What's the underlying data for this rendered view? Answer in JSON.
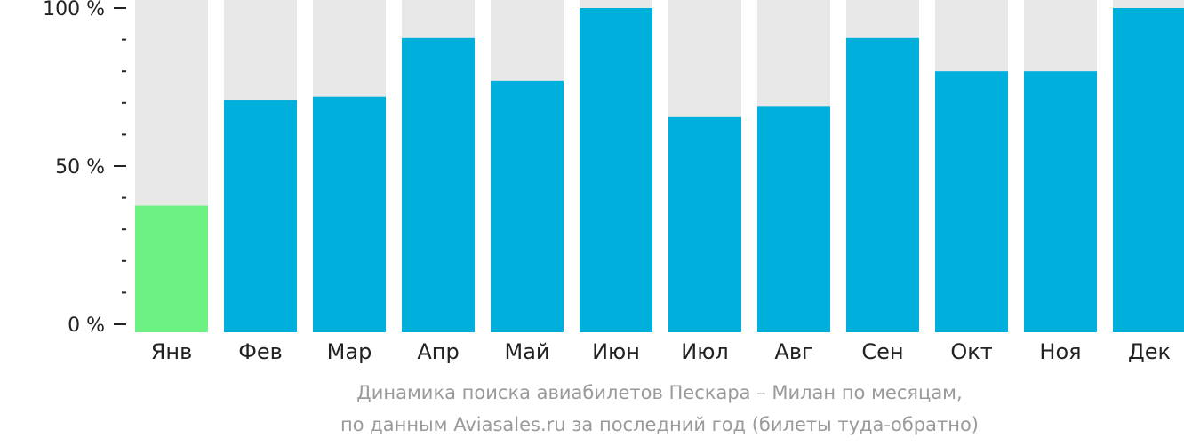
{
  "chart_data": {
    "type": "bar",
    "categories": [
      "Янв",
      "Фев",
      "Мар",
      "Апр",
      "Май",
      "Июн",
      "Июл",
      "Авг",
      "Сен",
      "Окт",
      "Ноя",
      "Дек"
    ],
    "values": [
      37.5,
      71,
      72,
      90.5,
      77,
      100,
      65.5,
      69,
      90.5,
      80,
      80,
      100
    ],
    "ylim": [
      0,
      100
    ],
    "y_ticks": [
      "0 %",
      "50 %",
      "100 %"
    ],
    "colors": {
      "bar": "#01afdc",
      "bar_min": "#6cf283",
      "bar_background": "#e8e8e8",
      "axis": "#222222"
    },
    "caption_line1": "Динамика поиска авиабилетов Пескара – Милан по месяцам,",
    "caption_line2": "по данным Aviasales.ru за последний год (билеты туда-обратно)"
  }
}
